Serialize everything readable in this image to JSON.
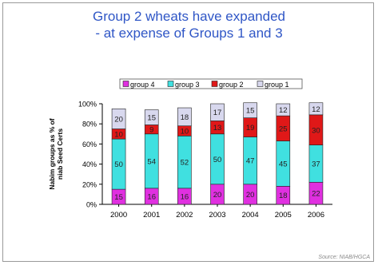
{
  "title_lines": [
    "Group 2 wheats have expanded",
    "- at expense of Groups 1 and 3"
  ],
  "source": "Source: NIAB/HGCA",
  "chart_data": {
    "type": "bar",
    "stacked": true,
    "percent": true,
    "categories": [
      "2000",
      "2001",
      "2002",
      "2003",
      "2004",
      "2005",
      "2006"
    ],
    "series": [
      {
        "name": "group 4",
        "color": "#e030e0",
        "values": [
          15,
          16,
          16,
          20,
          20,
          18,
          22
        ]
      },
      {
        "name": "group 3",
        "color": "#40e0e0",
        "values": [
          50,
          54,
          52,
          50,
          47,
          45,
          37
        ]
      },
      {
        "name": "group 2",
        "color": "#e01818",
        "values": [
          10,
          9,
          10,
          13,
          19,
          25,
          30
        ]
      },
      {
        "name": "group 1",
        "color": "#d8d8ee",
        "values": [
          20,
          15,
          18,
          17,
          15,
          12,
          12
        ]
      }
    ],
    "ylabel": "Nabim groups as % of niab Seed Certs",
    "yticks": [
      "0%",
      "20%",
      "40%",
      "60%",
      "80%",
      "100%"
    ],
    "ylim": [
      0,
      100
    ],
    "legend": "top",
    "grid": false
  }
}
